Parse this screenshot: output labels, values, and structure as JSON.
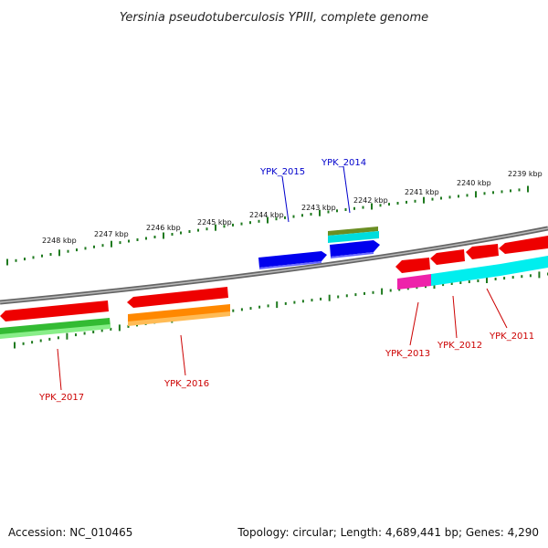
{
  "title": "Yersinia pseudotuberculosis YPIII, complete genome",
  "accession": "Accession: NC_010465",
  "summary": "Topology: circular; Length: 4,689,441 bp; Genes: 4,290",
  "ruler": {
    "color": "#1f7a1f",
    "labels": [
      "2248 kbp",
      "2247 kbp",
      "2246 kbp",
      "2245 kbp",
      "2244 kbp",
      "2243 kbp",
      "2242 kbp",
      "2241 kbp",
      "2240 kbp",
      "2239 kbp"
    ]
  },
  "colors": {
    "forward_label": "#0000cc",
    "reverse_label": "#cc0000",
    "backbone": "#888888"
  },
  "genes": [
    {
      "label": "YPK_2015",
      "strand": "forward",
      "color": "#0000ee"
    },
    {
      "label": "YPK_2014",
      "strand": "forward",
      "color": "#0000ee"
    },
    {
      "label": "YPK_2017",
      "strand": "reverse",
      "color": "#ee0000"
    },
    {
      "label": "YPK_2016",
      "strand": "reverse",
      "color": "#ee0000"
    },
    {
      "label": "YPK_2013",
      "strand": "reverse",
      "color": "#ee0000"
    },
    {
      "label": "YPK_2012",
      "strand": "reverse",
      "color": "#ee0000"
    },
    {
      "label": "YPK_2011",
      "strand": "reverse",
      "color": "#ee0000"
    }
  ]
}
